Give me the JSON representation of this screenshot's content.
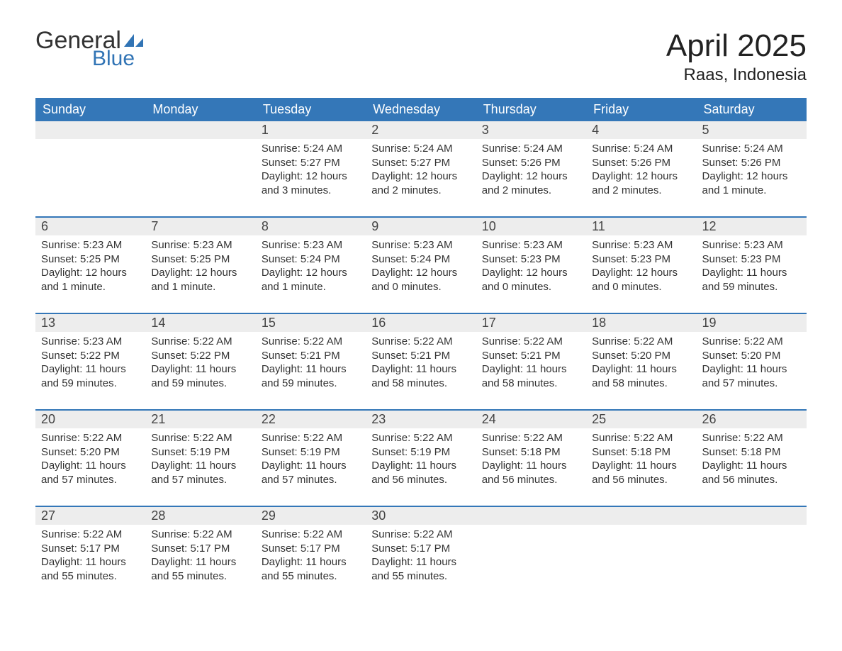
{
  "logo": {
    "word1": "General",
    "word2": "Blue",
    "accent_color": "#3174b5"
  },
  "title": "April 2025",
  "location": "Raas, Indonesia",
  "colors": {
    "header_bg": "#3477b8",
    "header_text": "#ffffff",
    "daynum_bg": "#ededed",
    "week_border": "#3477b8",
    "body_text": "#333333"
  },
  "fonts": {
    "title_size": 44,
    "location_size": 24,
    "th_size": 18,
    "daynum_size": 18,
    "detail_size": 15
  },
  "days_of_week": [
    "Sunday",
    "Monday",
    "Tuesday",
    "Wednesday",
    "Thursday",
    "Friday",
    "Saturday"
  ],
  "weeks": [
    [
      null,
      null,
      {
        "n": "1",
        "sunrise": "5:24 AM",
        "sunset": "5:27 PM",
        "daylight": "12 hours and 3 minutes."
      },
      {
        "n": "2",
        "sunrise": "5:24 AM",
        "sunset": "5:27 PM",
        "daylight": "12 hours and 2 minutes."
      },
      {
        "n": "3",
        "sunrise": "5:24 AM",
        "sunset": "5:26 PM",
        "daylight": "12 hours and 2 minutes."
      },
      {
        "n": "4",
        "sunrise": "5:24 AM",
        "sunset": "5:26 PM",
        "daylight": "12 hours and 2 minutes."
      },
      {
        "n": "5",
        "sunrise": "5:24 AM",
        "sunset": "5:26 PM",
        "daylight": "12 hours and 1 minute."
      }
    ],
    [
      {
        "n": "6",
        "sunrise": "5:23 AM",
        "sunset": "5:25 PM",
        "daylight": "12 hours and 1 minute."
      },
      {
        "n": "7",
        "sunrise": "5:23 AM",
        "sunset": "5:25 PM",
        "daylight": "12 hours and 1 minute."
      },
      {
        "n": "8",
        "sunrise": "5:23 AM",
        "sunset": "5:24 PM",
        "daylight": "12 hours and 1 minute."
      },
      {
        "n": "9",
        "sunrise": "5:23 AM",
        "sunset": "5:24 PM",
        "daylight": "12 hours and 0 minutes."
      },
      {
        "n": "10",
        "sunrise": "5:23 AM",
        "sunset": "5:23 PM",
        "daylight": "12 hours and 0 minutes."
      },
      {
        "n": "11",
        "sunrise": "5:23 AM",
        "sunset": "5:23 PM",
        "daylight": "12 hours and 0 minutes."
      },
      {
        "n": "12",
        "sunrise": "5:23 AM",
        "sunset": "5:23 PM",
        "daylight": "11 hours and 59 minutes."
      }
    ],
    [
      {
        "n": "13",
        "sunrise": "5:23 AM",
        "sunset": "5:22 PM",
        "daylight": "11 hours and 59 minutes."
      },
      {
        "n": "14",
        "sunrise": "5:22 AM",
        "sunset": "5:22 PM",
        "daylight": "11 hours and 59 minutes."
      },
      {
        "n": "15",
        "sunrise": "5:22 AM",
        "sunset": "5:21 PM",
        "daylight": "11 hours and 59 minutes."
      },
      {
        "n": "16",
        "sunrise": "5:22 AM",
        "sunset": "5:21 PM",
        "daylight": "11 hours and 58 minutes."
      },
      {
        "n": "17",
        "sunrise": "5:22 AM",
        "sunset": "5:21 PM",
        "daylight": "11 hours and 58 minutes."
      },
      {
        "n": "18",
        "sunrise": "5:22 AM",
        "sunset": "5:20 PM",
        "daylight": "11 hours and 58 minutes."
      },
      {
        "n": "19",
        "sunrise": "5:22 AM",
        "sunset": "5:20 PM",
        "daylight": "11 hours and 57 minutes."
      }
    ],
    [
      {
        "n": "20",
        "sunrise": "5:22 AM",
        "sunset": "5:20 PM",
        "daylight": "11 hours and 57 minutes."
      },
      {
        "n": "21",
        "sunrise": "5:22 AM",
        "sunset": "5:19 PM",
        "daylight": "11 hours and 57 minutes."
      },
      {
        "n": "22",
        "sunrise": "5:22 AM",
        "sunset": "5:19 PM",
        "daylight": "11 hours and 57 minutes."
      },
      {
        "n": "23",
        "sunrise": "5:22 AM",
        "sunset": "5:19 PM",
        "daylight": "11 hours and 56 minutes."
      },
      {
        "n": "24",
        "sunrise": "5:22 AM",
        "sunset": "5:18 PM",
        "daylight": "11 hours and 56 minutes."
      },
      {
        "n": "25",
        "sunrise": "5:22 AM",
        "sunset": "5:18 PM",
        "daylight": "11 hours and 56 minutes."
      },
      {
        "n": "26",
        "sunrise": "5:22 AM",
        "sunset": "5:18 PM",
        "daylight": "11 hours and 56 minutes."
      }
    ],
    [
      {
        "n": "27",
        "sunrise": "5:22 AM",
        "sunset": "5:17 PM",
        "daylight": "11 hours and 55 minutes."
      },
      {
        "n": "28",
        "sunrise": "5:22 AM",
        "sunset": "5:17 PM",
        "daylight": "11 hours and 55 minutes."
      },
      {
        "n": "29",
        "sunrise": "5:22 AM",
        "sunset": "5:17 PM",
        "daylight": "11 hours and 55 minutes."
      },
      {
        "n": "30",
        "sunrise": "5:22 AM",
        "sunset": "5:17 PM",
        "daylight": "11 hours and 55 minutes."
      },
      null,
      null,
      null
    ]
  ],
  "labels": {
    "sunrise": "Sunrise:",
    "sunset": "Sunset:",
    "daylight": "Daylight:"
  }
}
